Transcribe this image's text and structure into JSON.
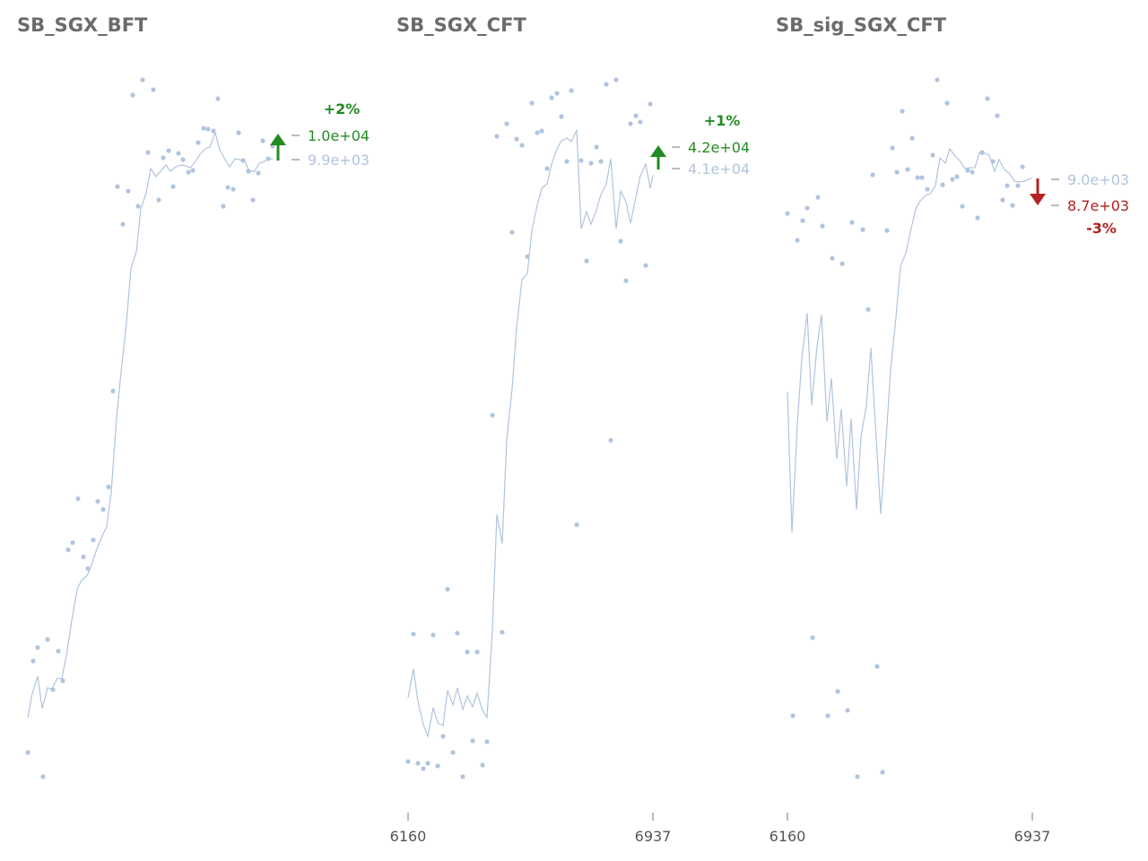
{
  "colors": {
    "series": "#b0c4de",
    "up": "#228b22",
    "down": "#b22222",
    "tick": "#bbbbbb",
    "text": "#555555",
    "title": "#6b6b6b"
  },
  "chart_data": [
    {
      "type": "line",
      "title": "SB_SGX_BFT",
      "xlim": [
        6160,
        6937
      ],
      "ylim": [
        8600,
        10250
      ],
      "xticks": [],
      "points": [
        [
          6160,
          8697
        ],
        [
          6177,
          9101
        ],
        [
          6193,
          8678
        ],
        [
          6210,
          9105
        ],
        [
          6226,
          9104
        ],
        [
          6243,
          9131
        ],
        [
          6260,
          9095
        ],
        [
          6277,
          9114
        ],
        [
          6294,
          9109
        ],
        [
          6311,
          9015
        ],
        [
          6328,
          9021
        ],
        [
          6345,
          9328
        ],
        [
          6362,
          9337
        ],
        [
          6379,
          9268
        ],
        [
          6396,
          9398
        ],
        [
          6413,
          9338
        ],
        [
          6430,
          9437
        ],
        [
          6447,
          9371
        ],
        [
          6464,
          9439
        ],
        [
          6481,
          9480
        ],
        [
          6498,
          9419
        ],
        [
          6515,
          9426
        ],
        [
          6532,
          9396
        ],
        [
          6549,
          9479
        ],
        [
          6566,
          9487
        ],
        [
          6583,
          9514
        ],
        [
          6600,
          9554
        ],
        [
          6617,
          9513
        ],
        [
          6634,
          9592
        ],
        [
          6651,
          9513
        ],
        [
          6668,
          9505
        ],
        [
          6685,
          9482
        ],
        [
          6702,
          9472
        ],
        [
          6719,
          9522
        ],
        [
          6736,
          9618
        ],
        [
          6753,
          9636
        ],
        [
          6770,
          9647
        ],
        [
          6787,
          9656
        ],
        [
          6804,
          9645
        ],
        [
          6821,
          9626
        ],
        [
          6838,
          9626
        ],
        [
          6855,
          9660
        ],
        [
          6872,
          9694
        ],
        [
          6889,
          9701
        ],
        [
          6906,
          9708
        ],
        [
          6923,
          9695
        ],
        [
          6937,
          9710
        ],
        [
          6154,
          8978
        ],
        [
          6170,
          9044
        ],
        [
          6186,
          8959
        ],
        [
          6202,
          9058
        ],
        [
          6219,
          9141
        ],
        [
          6236,
          9101
        ],
        [
          6253,
          9089
        ],
        [
          6270,
          9115
        ],
        [
          6287,
          9079
        ],
        [
          6304,
          9035
        ],
        [
          6321,
          9057
        ],
        [
          6338,
          9025
        ],
        [
          6355,
          9060
        ],
        [
          6372,
          9155
        ],
        [
          6389,
          9259
        ],
        [
          6406,
          9290
        ],
        [
          6423,
          9262
        ],
        [
          6440,
          9242
        ],
        [
          6457,
          9227
        ],
        [
          6474,
          9192
        ],
        [
          6491,
          9197
        ],
        [
          6508,
          9223
        ],
        [
          6525,
          9183
        ],
        [
          6542,
          9176
        ],
        [
          6559,
          9213
        ],
        [
          6576,
          9193
        ],
        [
          6593,
          9201
        ],
        [
          6610,
          9169
        ],
        [
          6627,
          9188
        ],
        [
          6644,
          9181
        ],
        [
          6661,
          9171
        ],
        [
          6678,
          9178
        ],
        [
          6695,
          9189
        ],
        [
          6712,
          9226
        ],
        [
          6729,
          9229
        ],
        [
          6746,
          9181
        ],
        [
          6763,
          9213
        ],
        [
          6780,
          9225
        ],
        [
          6797,
          9235
        ],
        [
          6814,
          9197
        ],
        [
          6831,
          9202
        ],
        [
          6848,
          9226
        ],
        [
          6865,
          9249
        ],
        [
          6882,
          9263
        ],
        [
          6899,
          9279
        ],
        [
          6916,
          9287
        ],
        [
          6926,
          9302
        ]
      ],
      "series": [
        {
          "name": "",
          "values": []
        }
      ],
      "annotation": {
        "prev_label": "9.9e+03",
        "last_label": "1.0e+04",
        "change_label": "+2%",
        "direction": "up"
      }
    },
    {
      "type": "line",
      "title": "SB_SGX_CFT",
      "xlim": [
        6160,
        6937
      ],
      "ylim": [
        38000,
        42400
      ],
      "xticks": [
        "6160",
        "6937"
      ],
      "annotation": {
        "prev_label": "4.1e+04",
        "last_label": "4.2e+04",
        "change_label": "+1%",
        "direction": "up"
      }
    },
    {
      "type": "line",
      "title": "SB_sig_SGX_CFT",
      "xlim": [
        6160,
        6937
      ],
      "ylim": [
        7800,
        9250
      ],
      "xticks": [
        "6160",
        "6937"
      ],
      "annotation": {
        "prev_label": "9.0e+03",
        "last_label": "8.7e+03",
        "change_label": "-3%",
        "direction": "down"
      }
    }
  ]
}
